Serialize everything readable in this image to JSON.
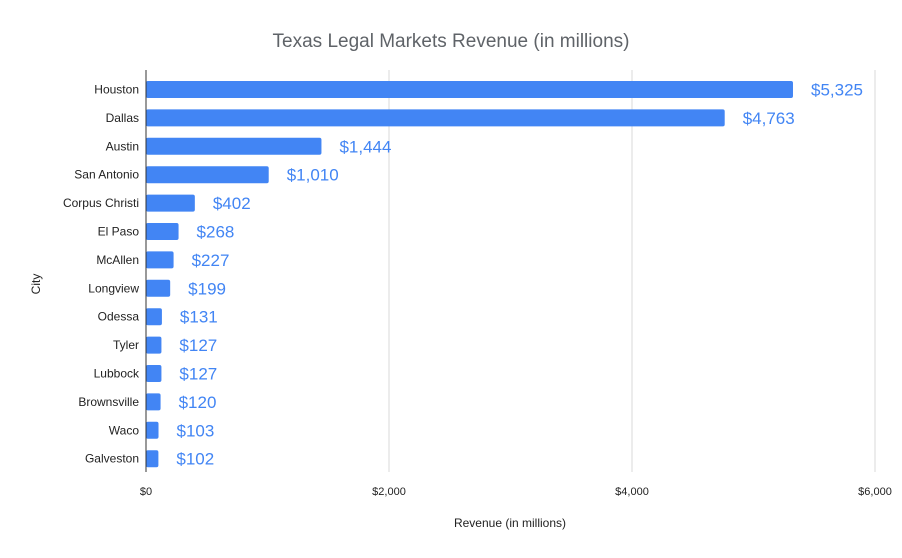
{
  "chart_data": {
    "type": "bar",
    "orientation": "horizontal",
    "title": "Texas Legal Markets Revenue (in millions)",
    "xlabel": "Revenue (in millions)",
    "ylabel": "City",
    "categories": [
      "Houston",
      "Dallas",
      "Austin",
      "San Antonio",
      "Corpus Christi",
      "El Paso",
      "McAllen",
      "Longview",
      "Odessa",
      "Tyler",
      "Lubbock",
      "Brownsville",
      "Waco",
      "Galveston"
    ],
    "values": [
      5325,
      4763,
      1444,
      1010,
      402,
      268,
      227,
      199,
      131,
      127,
      127,
      120,
      103,
      102
    ],
    "data_labels": [
      "$5,325",
      "$4,763",
      "$1,444",
      "$1,010",
      "$402",
      "$268",
      "$227",
      "$199",
      "$131",
      "$127",
      "$127",
      "$120",
      "$103",
      "$102"
    ],
    "xlim": [
      0,
      6000
    ],
    "x_ticks": [
      0,
      2000,
      4000,
      6000
    ],
    "x_tick_labels": [
      "$0",
      "$2,000",
      "$4,000",
      "$6,000"
    ],
    "grid": true,
    "legend": "none",
    "bar_color": "#4285f4",
    "label_color": "#4285f4"
  }
}
